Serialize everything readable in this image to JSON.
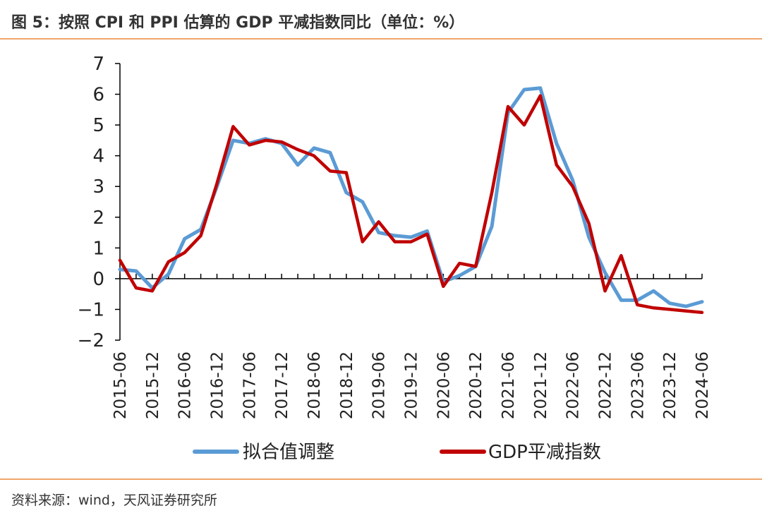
{
  "header": {
    "title": "图 5：按照 CPI 和 PPI 估算的 GDP 平减指数同比（单位：%）"
  },
  "footer": {
    "source": "资料来源：wind，天风证券研究所"
  },
  "colors": {
    "accent_rule": "#f0a56b",
    "series_fitted": "#5b9bd5",
    "series_deflator": "#c00000"
  },
  "chart_data": {
    "type": "line",
    "title": "图 5：按照 CPI 和 PPI 估算的 GDP 平减指数同比（单位：%）",
    "xlabel": "",
    "ylabel": "",
    "ylim": [
      -2,
      7
    ],
    "yticks": [
      "7",
      "6",
      "5",
      "4",
      "3",
      "2",
      "1",
      "0",
      "−1",
      "−2"
    ],
    "yticks_values": [
      7,
      6,
      5,
      4,
      3,
      2,
      1,
      0,
      -1,
      -2
    ],
    "x_tick_labels": [
      "2015-06",
      "2015-12",
      "2016-06",
      "2016-12",
      "2017-06",
      "2017-12",
      "2018-06",
      "2018-12",
      "2019-06",
      "2019-12",
      "2020-06",
      "2020-12",
      "2021-06",
      "2021-12",
      "2022-06",
      "2022-12",
      "2023-06",
      "2023-12",
      "2024-06"
    ],
    "x": [
      "2015-06",
      "2015-09",
      "2015-12",
      "2016-03",
      "2016-06",
      "2016-09",
      "2016-12",
      "2017-03",
      "2017-06",
      "2017-09",
      "2017-12",
      "2018-03",
      "2018-06",
      "2018-09",
      "2018-12",
      "2019-03",
      "2019-06",
      "2019-09",
      "2019-12",
      "2020-03",
      "2020-06",
      "2020-09",
      "2020-12",
      "2021-03",
      "2021-06",
      "2021-09",
      "2021-12",
      "2022-03",
      "2022-06",
      "2022-09",
      "2022-12",
      "2023-03",
      "2023-06",
      "2023-09",
      "2023-12",
      "2024-03",
      "2024-06"
    ],
    "grid": false,
    "legend_position": "bottom",
    "series": [
      {
        "name": "拟合值调整",
        "color": "#5b9bd5",
        "values": [
          0.3,
          0.25,
          -0.3,
          0.15,
          1.3,
          1.6,
          3.0,
          4.5,
          4.4,
          4.55,
          4.4,
          3.7,
          4.25,
          4.1,
          2.8,
          2.5,
          1.5,
          1.4,
          1.35,
          1.55,
          -0.1,
          0.1,
          0.4,
          1.7,
          5.4,
          6.15,
          6.2,
          4.4,
          3.2,
          1.35,
          0.2,
          -0.7,
          -0.7,
          -0.4,
          -0.8,
          -0.9,
          -0.75
        ]
      },
      {
        "name": "GDP平减指数",
        "color": "#c00000",
        "values": [
          0.6,
          -0.3,
          -0.4,
          0.55,
          0.85,
          1.4,
          3.1,
          4.95,
          4.35,
          4.5,
          4.45,
          4.2,
          4.0,
          3.5,
          3.45,
          1.2,
          1.85,
          1.2,
          1.2,
          1.45,
          -0.25,
          0.5,
          0.4,
          2.8,
          5.6,
          5.0,
          5.95,
          3.7,
          3.0,
          1.8,
          -0.4,
          0.75,
          -0.85,
          -0.95,
          -1.0,
          -1.05,
          -1.1
        ]
      }
    ]
  }
}
